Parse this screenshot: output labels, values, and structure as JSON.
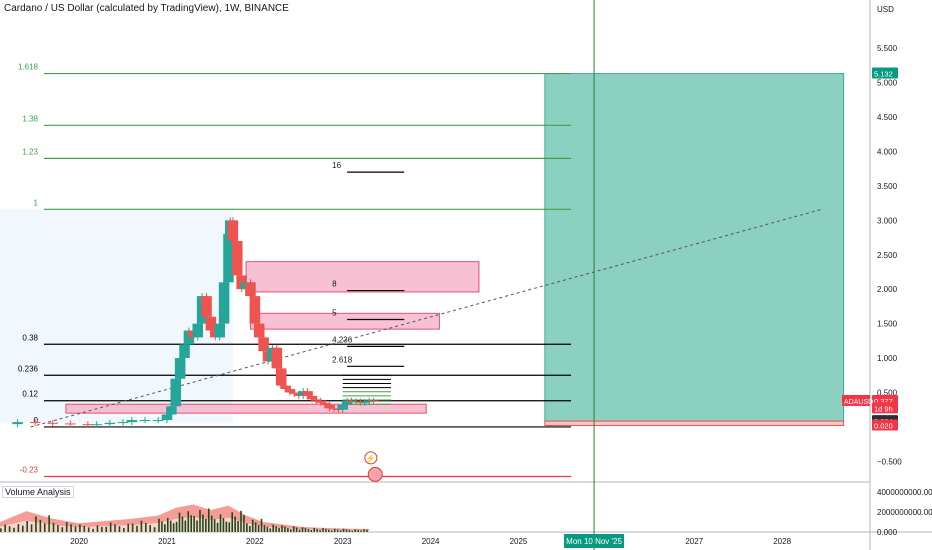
{
  "header": {
    "title": "Cardano / US Dollar (calculated by TradingView), 1W, BINANCE"
  },
  "volume_panel": {
    "label": "Volume Analysis"
  },
  "price_axis": {
    "currency": "USD"
  },
  "colors": {
    "fib_green": "#43a047",
    "fib_line_green": "#2e7d32",
    "fib_red": "#e53935",
    "fib_black": "#000000",
    "target_box": "#80cbbc",
    "target_box_border": "#26a69a",
    "pink_box": "#f3a6c0",
    "pink_box_border": "#e2516f",
    "up_candle": "#26a69a",
    "down_candle": "#ef5350",
    "volume_bar": "#1b4d1b",
    "volume_red_band": "#f28b82",
    "volume_light_band": "#fdd8d5",
    "cursor_line": "#2e7d32",
    "label_green": "#089981",
    "label_red": "#f23645"
  },
  "chart_data": {
    "type": "line",
    "title": "Cardano / US Dollar (calculated by TradingView), 1W, BINANCE",
    "xlabel": "",
    "ylabel": "USD",
    "xlim": [
      2019.1,
      2029.0
    ],
    "ylim": [
      -0.8,
      6.2
    ],
    "x_ticks": [
      "2020",
      "2021",
      "2022",
      "2023",
      "2024",
      "2025",
      "2027",
      "2028"
    ],
    "x_tick_values": [
      2020.0,
      2021.0,
      2022.0,
      2023.0,
      2024.0,
      2025.0,
      2027.0,
      2028.0
    ],
    "y_ticks": [
      "5.500",
      "5.000",
      "4.500",
      "4.000",
      "3.500",
      "3.000",
      "2.500",
      "2.000",
      "1.500",
      "1.000",
      "0.500",
      "−0.500"
    ],
    "y_tick_values": [
      5.5,
      5.0,
      4.5,
      4.0,
      3.5,
      3.0,
      2.5,
      2.0,
      1.5,
      1.0,
      0.5,
      -0.5
    ],
    "fib_levels": [
      {
        "label": "1.618",
        "price": 5.132,
        "color": "#43a047"
      },
      {
        "label": "1.38",
        "price": 4.38,
        "color": "#43a047"
      },
      {
        "label": "1.23",
        "price": 3.9,
        "color": "#43a047"
      },
      {
        "label": "1",
        "price": 3.16,
        "color": "#43a047"
      },
      {
        "label": "0.38",
        "price": 1.2,
        "color": "#000000"
      },
      {
        "label": "0.236",
        "price": 0.75,
        "color": "#000000"
      },
      {
        "label": "0.12",
        "price": 0.38,
        "color": "#000000"
      },
      {
        "label": "0",
        "price": 0.0,
        "color": "#000000"
      },
      {
        "label": "-0.23",
        "price": -0.72,
        "color": "#e53935"
      }
    ],
    "extension_levels": [
      {
        "label": "16",
        "price": 3.7
      },
      {
        "label": "8",
        "price": 1.98
      },
      {
        "label": "5",
        "price": 1.56
      },
      {
        "label": "4.236",
        "price": 1.17
      },
      {
        "label": "2.618",
        "price": 0.88
      }
    ],
    "price_labels": [
      {
        "text": "5.132",
        "price": 5.132,
        "color": "#089981"
      },
      {
        "text": "0.377",
        "price": 0.377,
        "color": "#f23645"
      },
      {
        "text": "1d 9h",
        "price": 0.27,
        "color": "#f23645"
      },
      {
        "text": "0.084",
        "price": 0.084,
        "color": "#131722"
      },
      {
        "text": "0.020",
        "price": 0.02,
        "color": "#f23645"
      }
    ],
    "symbol_label": "ADAUSD",
    "cursor": {
      "date_label": "Mon 10 Nov '25",
      "x": 2025.86
    },
    "target_box": {
      "x0": 2025.3,
      "x1": 2028.7,
      "top": 5.132,
      "bottom": 0.084
    },
    "stop_box": {
      "x0": 2025.3,
      "x1": 2028.7,
      "top": 0.084,
      "bottom": 0.02
    },
    "pink_boxes": [
      {
        "x0": 2021.9,
        "x1": 2024.55,
        "top": 2.4,
        "bottom": 1.96
      },
      {
        "x0": 2021.95,
        "x1": 2024.1,
        "top": 1.65,
        "bottom": 1.42
      },
      {
        "x0": 2019.85,
        "x1": 2023.95,
        "top": 0.33,
        "bottom": 0.2
      }
    ],
    "trend_line": {
      "x0": 2019.45,
      "y0": 0.0,
      "x1": 2028.45,
      "y1": 3.16
    },
    "series": [
      {
        "name": "ADAUSD",
        "x": [
          2019.1,
          2019.3,
          2019.5,
          2019.7,
          2019.9,
          2020.1,
          2020.2,
          2020.35,
          2020.5,
          2020.6,
          2020.75,
          2020.9,
          2021.0,
          2021.05,
          2021.1,
          2021.15,
          2021.2,
          2021.25,
          2021.3,
          2021.35,
          2021.4,
          2021.45,
          2021.5,
          2021.55,
          2021.6,
          2021.65,
          2021.7,
          2021.72,
          2021.75,
          2021.8,
          2021.85,
          2021.9,
          2021.95,
          2022.0,
          2022.05,
          2022.1,
          2022.15,
          2022.2,
          2022.25,
          2022.3,
          2022.35,
          2022.4,
          2022.45,
          2022.5,
          2022.55,
          2022.6,
          2022.65,
          2022.7,
          2022.75,
          2022.8,
          2022.85,
          2022.9,
          2022.95,
          2023.0,
          2023.05,
          2023.1,
          2023.15,
          2023.2,
          2023.25,
          2023.3,
          2023.35
        ],
        "values": [
          0.04,
          0.07,
          0.06,
          0.05,
          0.04,
          0.03,
          0.04,
          0.06,
          0.07,
          0.1,
          0.1,
          0.1,
          0.18,
          0.3,
          0.7,
          1.0,
          1.2,
          1.4,
          1.3,
          1.5,
          1.9,
          1.6,
          1.4,
          1.3,
          1.5,
          2.1,
          2.8,
          3.0,
          2.7,
          2.2,
          2.0,
          2.1,
          1.9,
          1.5,
          1.3,
          1.1,
          0.95,
          1.15,
          0.85,
          0.6,
          0.55,
          0.5,
          0.48,
          0.45,
          0.52,
          0.45,
          0.4,
          0.38,
          0.35,
          0.32,
          0.27,
          0.26,
          0.25,
          0.32,
          0.38,
          0.36,
          0.37,
          0.35,
          0.36,
          0.38,
          0.377
        ]
      }
    ],
    "volume": {
      "ylim": [
        0,
        5000000000
      ],
      "y_ticks": [
        "4000000000.000",
        "2000000000.000",
        "0.000"
      ],
      "y_tick_values": [
        4000000000,
        2000000000,
        0
      ],
      "x": [
        2019.1,
        2019.4,
        2019.7,
        2020.0,
        2020.3,
        2020.6,
        2020.9,
        2021.1,
        2021.3,
        2021.5,
        2021.7,
        2021.9,
        2022.1,
        2022.3,
        2022.5,
        2022.7,
        2022.9,
        2023.1,
        2023.3
      ],
      "values": [
        900000000,
        1900000000,
        1200000000,
        800000000,
        1000000000,
        1200000000,
        1500000000,
        2200000000,
        2500000000,
        2000000000,
        2400000000,
        1500000000,
        900000000,
        700000000,
        500000000,
        400000000,
        350000000,
        300000000,
        280000000
      ]
    }
  }
}
